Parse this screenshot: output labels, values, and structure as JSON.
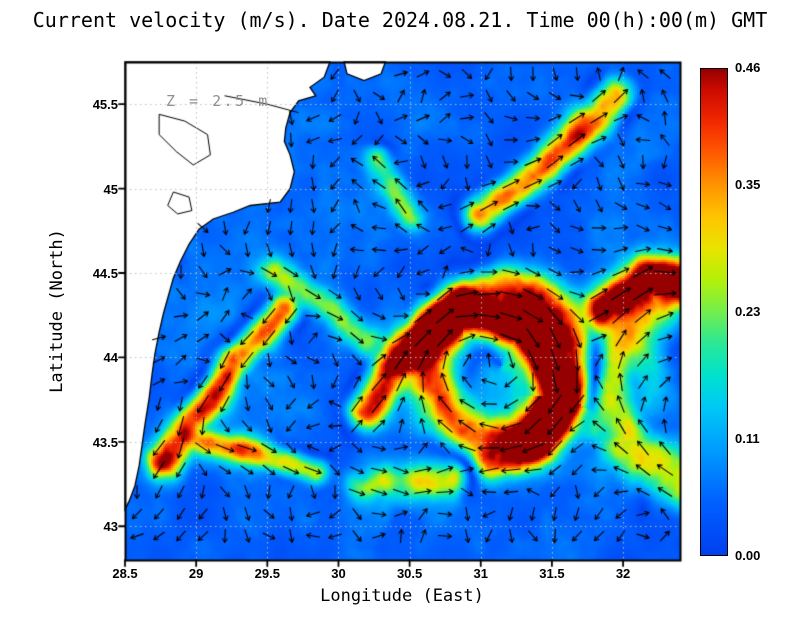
{
  "title": "Current velocity (m/s). Date 2024.08.21. Time 00(h):00(m) GMT",
  "annotation": "Z = 2.5 m",
  "axes": {
    "x": {
      "label": "Longitude (East)",
      "min": 28.5,
      "max": 32.4,
      "tick_values": [
        28.5,
        29,
        29.5,
        30,
        30.5,
        31,
        31.5,
        32
      ],
      "tick_labels": [
        "28.5",
        "29",
        "29.5",
        "30",
        "30.5",
        "31",
        "31.5",
        "32"
      ]
    },
    "y": {
      "label": "Latitude (North)",
      "min": 42.8,
      "max": 45.75,
      "tick_values": [
        43,
        43.5,
        44,
        44.5,
        45,
        45.5
      ],
      "tick_labels": [
        "43",
        "43.5",
        "44",
        "44.5",
        "45",
        "45.5"
      ]
    }
  },
  "colorbar": {
    "min": 0,
    "max": 0.46,
    "tick_values": [
      0,
      0.11,
      0.23,
      0.35,
      0.46
    ],
    "tick_labels": [
      "0.00",
      "0.11",
      "0.23",
      "0.35",
      "0.46"
    ]
  },
  "chart_data": {
    "type": "heatmap",
    "overlay": "quiver",
    "variable": "sea surface current speed",
    "units": "m/s",
    "depth_label": "Z = 2.5 m",
    "date": "2024.08.21",
    "time": "00(h):00(m) GMT",
    "xlabel": "Longitude (East)",
    "ylabel": "Latitude (North)",
    "xlim": [
      28.5,
      32.4
    ],
    "ylim": [
      42.8,
      45.75
    ],
    "vmin": 0,
    "vmax": 0.46,
    "grid": true,
    "colormap": [
      [
        0.0,
        "#0040f0"
      ],
      [
        0.05,
        "#0060ff"
      ],
      [
        0.1,
        "#009cff"
      ],
      [
        0.14,
        "#00c8f6"
      ],
      [
        0.17,
        "#00e2cc"
      ],
      [
        0.2,
        "#2ae896"
      ],
      [
        0.23,
        "#72ee4e"
      ],
      [
        0.26,
        "#b2f00a"
      ],
      [
        0.29,
        "#e8e400"
      ],
      [
        0.32,
        "#ffc400"
      ],
      [
        0.35,
        "#ff9400"
      ],
      [
        0.38,
        "#ff5a00"
      ],
      [
        0.41,
        "#f22800"
      ],
      [
        0.44,
        "#cc0a00"
      ],
      [
        0.46,
        "#960000"
      ]
    ],
    "flow_features": {
      "eddies": [
        {
          "center": [
            31.15,
            43.95
          ],
          "r0": 0.5,
          "w": 0.17,
          "amp": 0.38,
          "spin": -1,
          "core": 0.1
        },
        {
          "center": [
            32.6,
            43.85
          ],
          "r0": 0.68,
          "w": 0.2,
          "amp": 0.3,
          "spin": -1,
          "core": 0.06
        }
      ],
      "jets": [
        {
          "path": [
            [
              30.2,
              43.68
            ],
            [
              30.42,
              44.0
            ],
            [
              30.85,
              44.28
            ],
            [
              31.3,
              44.16
            ],
            [
              31.57,
              43.78
            ],
            [
              31.38,
              43.48
            ],
            [
              31.05,
              43.38
            ]
          ],
          "amp": 0.46,
          "w": 0.13
        },
        {
          "path": [
            [
              31.0,
              44.85
            ],
            [
              31.45,
              45.12
            ],
            [
              31.95,
              45.55
            ]
          ],
          "amp": 0.36,
          "w": 0.13
        },
        {
          "path": [
            [
              29.62,
              44.28
            ],
            [
              29.28,
              43.98
            ],
            [
              28.98,
              43.62
            ],
            [
              28.78,
              43.38
            ]
          ],
          "amp": 0.44,
          "w": 0.12
        },
        {
          "path": [
            [
              28.95,
              43.52
            ],
            [
              29.4,
              43.44
            ],
            [
              29.85,
              43.32
            ]
          ],
          "amp": 0.3,
          "w": 0.1
        },
        {
          "path": [
            [
              31.85,
              44.28
            ],
            [
              32.18,
              44.5
            ],
            [
              32.42,
              44.44
            ]
          ],
          "amp": 0.4,
          "w": 0.13
        },
        {
          "path": [
            [
              30.15,
              43.25
            ],
            [
              30.8,
              43.28
            ],
            [
              31.2,
              43.45
            ]
          ],
          "amp": 0.22,
          "w": 0.12
        },
        {
          "path": [
            [
              30.5,
              44.82
            ],
            [
              30.28,
              45.18
            ]
          ],
          "amp": 0.22,
          "w": 0.1
        },
        {
          "path": [
            [
              29.55,
              44.5
            ],
            [
              29.95,
              44.28
            ],
            [
              30.2,
              44.1
            ]
          ],
          "amp": 0.2,
          "w": 0.11
        }
      ],
      "noise": {
        "dir_scale": 1.6,
        "speed_base": 0.025,
        "speed_amp": 0.09,
        "speed_scale": 2.8,
        "texture_scale": 7.3,
        "texture_amp": 0.5
      }
    },
    "land": {
      "coast": [
        [
          28.5,
          45.75
        ],
        [
          29.94,
          45.75
        ],
        [
          29.9,
          45.66
        ],
        [
          29.8,
          45.6
        ],
        [
          29.84,
          45.55
        ],
        [
          29.72,
          45.52
        ],
        [
          29.66,
          45.45
        ],
        [
          29.63,
          45.36
        ],
        [
          29.62,
          45.28
        ],
        [
          29.66,
          45.2
        ],
        [
          29.69,
          45.1
        ],
        [
          29.66,
          45.0
        ],
        [
          29.59,
          44.92
        ],
        [
          29.38,
          44.9
        ],
        [
          29.26,
          44.86
        ],
        [
          29.12,
          44.82
        ],
        [
          29.02,
          44.76
        ],
        [
          28.95,
          44.67
        ],
        [
          28.89,
          44.57
        ],
        [
          28.84,
          44.47
        ],
        [
          28.81,
          44.38
        ],
        [
          28.77,
          44.26
        ],
        [
          28.74,
          44.15
        ],
        [
          28.71,
          44.02
        ],
        [
          28.69,
          43.9
        ],
        [
          28.67,
          43.76
        ],
        [
          28.64,
          43.6
        ],
        [
          28.62,
          43.48
        ],
        [
          28.6,
          43.36
        ],
        [
          28.57,
          43.24
        ],
        [
          28.53,
          43.15
        ],
        [
          28.5,
          43.1
        ]
      ],
      "islet": [
        [
          30.04,
          45.75
        ],
        [
          30.06,
          45.68
        ],
        [
          30.18,
          45.64
        ],
        [
          30.3,
          45.68
        ],
        [
          30.33,
          45.75
        ]
      ],
      "lagoons": [
        {
          "closed": true,
          "path": [
            [
              28.74,
              45.44
            ],
            [
              28.92,
              45.4
            ],
            [
              29.08,
              45.32
            ],
            [
              29.1,
              45.2
            ],
            [
              28.98,
              45.14
            ],
            [
              28.86,
              45.22
            ],
            [
              28.74,
              45.32
            ]
          ]
        },
        {
          "closed": false,
          "path": [
            [
              29.2,
              45.55
            ],
            [
              29.5,
              45.5
            ],
            [
              29.72,
              45.45
            ]
          ]
        },
        {
          "closed": true,
          "path": [
            [
              28.84,
              44.98
            ],
            [
              28.95,
              44.95
            ],
            [
              28.97,
              44.87
            ],
            [
              28.87,
              44.85
            ],
            [
              28.8,
              44.9
            ]
          ]
        }
      ]
    }
  }
}
